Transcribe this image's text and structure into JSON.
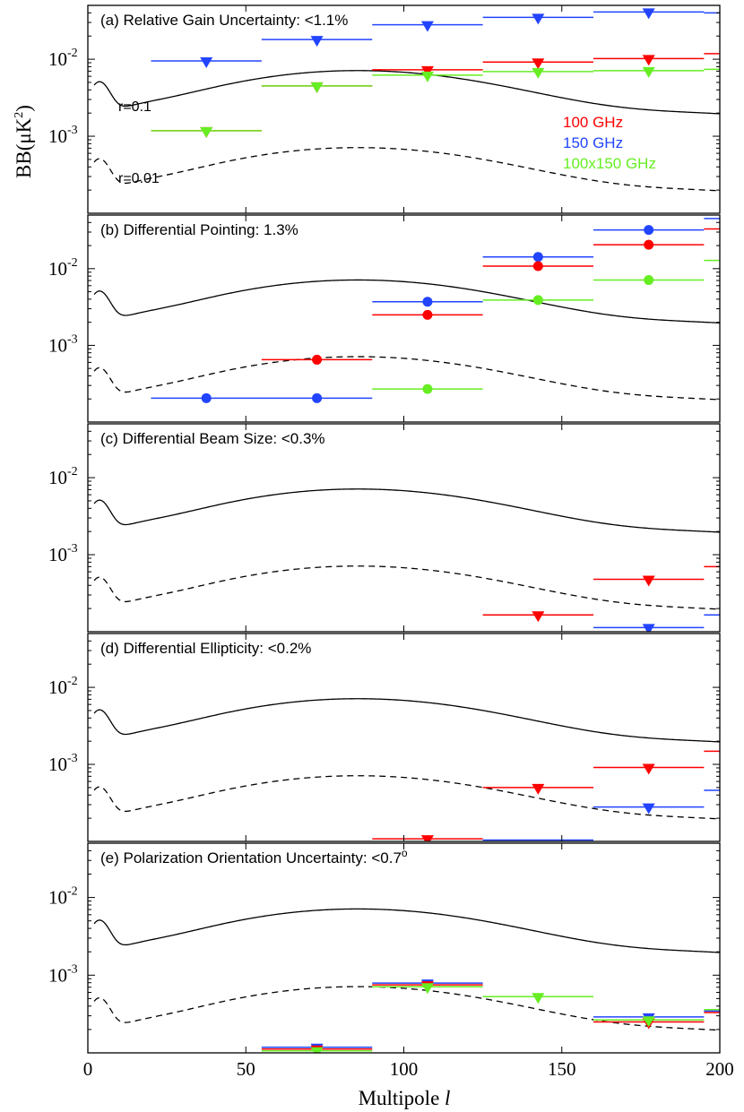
{
  "chart_data": {
    "type": "scatter",
    "xlabel": "Multipole l",
    "xlabel_prefix": "Multipole",
    "xlabel_symbol": "l",
    "ylabel": "BB(μK²)",
    "ylabel_base": "BB(μK",
    "ylabel_power": "2",
    "ylabel_close": ")",
    "xlim": [
      0,
      200
    ],
    "ylim": [
      0.0001,
      0.05
    ],
    "x_ticks": [
      "0",
      "50",
      "100",
      "150",
      "200"
    ],
    "y_ticks": [
      {
        "base": "10",
        "exp": "-3"
      },
      {
        "base": "10",
        "exp": "-2"
      }
    ],
    "colors": {
      "100": "#ff0000",
      "150": "#2244ff",
      "cross": "#66ee22",
      "curve": "#000000"
    },
    "legend": [
      "100 GHz",
      "150 GHz",
      "100x150 GHz"
    ],
    "reference_curves": [
      {
        "name": "r=0.1",
        "style": "solid"
      },
      {
        "name": "r=0.01",
        "style": "dashed"
      }
    ],
    "panels": [
      {
        "title": "(a) Relative Gain Uncertainty: <1.1%",
        "marker": "triangle",
        "show_r_labels": true,
        "show_legend": true,
        "series": [
          {
            "name": "150 GHz",
            "key": "150",
            "points": [
              {
                "lo": 20,
                "hi": 55,
                "x": 37.5,
                "y": 0.0095
              },
              {
                "lo": 55,
                "hi": 90,
                "x": 72.5,
                "y": 0.018
              },
              {
                "lo": 90,
                "hi": 125,
                "x": 107.5,
                "y": 0.028
              },
              {
                "lo": 125,
                "hi": 160,
                "x": 142.5,
                "y": 0.035
              },
              {
                "lo": 160,
                "hi": 195,
                "x": 177.5,
                "y": 0.041
              },
              {
                "lo": 195,
                "hi": 200,
                "x": null,
                "y": 0.04
              }
            ]
          },
          {
            "name": "100 GHz",
            "key": "100",
            "points": [
              {
                "lo": 20,
                "hi": 55,
                "x": 37.5,
                "y": 0.00118
              },
              {
                "lo": 55,
                "hi": 90,
                "x": 72.5,
                "y": 0.0045
              },
              {
                "lo": 90,
                "hi": 125,
                "x": 107.5,
                "y": 0.0073
              },
              {
                "lo": 125,
                "hi": 160,
                "x": 142.5,
                "y": 0.0092
              },
              {
                "lo": 160,
                "hi": 195,
                "x": 177.5,
                "y": 0.0102
              },
              {
                "lo": 195,
                "hi": 200,
                "x": null,
                "y": 0.0118
              }
            ]
          },
          {
            "name": "100x150 GHz",
            "key": "cross",
            "points": [
              {
                "lo": 20,
                "hi": 55,
                "x": 37.5,
                "y": 0.00118
              },
              {
                "lo": 55,
                "hi": 90,
                "x": 72.5,
                "y": 0.0045
              },
              {
                "lo": 90,
                "hi": 125,
                "x": 107.5,
                "y": 0.0062
              },
              {
                "lo": 125,
                "hi": 160,
                "x": 142.5,
                "y": 0.0069
              },
              {
                "lo": 160,
                "hi": 195,
                "x": 177.5,
                "y": 0.0071
              },
              {
                "lo": 195,
                "hi": 200,
                "x": null,
                "y": 0.0074
              }
            ]
          }
        ]
      },
      {
        "title": "(b) Differential Pointing: 1.3%",
        "marker": "circle",
        "show_r_labels": false,
        "show_legend": false,
        "series": [
          {
            "name": "150 GHz",
            "key": "150",
            "points": [
              {
                "lo": 20,
                "hi": 55,
                "x": 37.5,
                "y": 0.000205
              },
              {
                "lo": 55,
                "hi": 90,
                "x": 72.5,
                "y": 0.000205
              },
              {
                "lo": 90,
                "hi": 125,
                "x": 107.5,
                "y": 0.0037
              },
              {
                "lo": 125,
                "hi": 160,
                "x": 142.5,
                "y": 0.0142
              },
              {
                "lo": 160,
                "hi": 195,
                "x": 177.5,
                "y": 0.032
              },
              {
                "lo": 195,
                "hi": 200,
                "x": null,
                "y": 0.045
              }
            ]
          },
          {
            "name": "100 GHz",
            "key": "100",
            "points": [
              {
                "lo": 55,
                "hi": 90,
                "x": 72.5,
                "y": 0.00065
              },
              {
                "lo": 90,
                "hi": 125,
                "x": 107.5,
                "y": 0.0025
              },
              {
                "lo": 125,
                "hi": 160,
                "x": 142.5,
                "y": 0.0108
              },
              {
                "lo": 160,
                "hi": 195,
                "x": 177.5,
                "y": 0.0205
              },
              {
                "lo": 195,
                "hi": 200,
                "x": null,
                "y": 0.033
              }
            ]
          },
          {
            "name": "100x150 GHz",
            "key": "cross",
            "points": [
              {
                "lo": 90,
                "hi": 125,
                "x": 107.5,
                "y": 0.00027
              },
              {
                "lo": 125,
                "hi": 160,
                "x": 142.5,
                "y": 0.0039
              },
              {
                "lo": 160,
                "hi": 195,
                "x": 177.5,
                "y": 0.0071
              },
              {
                "lo": 195,
                "hi": 200,
                "x": null,
                "y": 0.0128
              }
            ]
          }
        ]
      },
      {
        "title": "(c) Differential Beam Size: <0.3%",
        "marker": "triangle",
        "show_r_labels": false,
        "show_legend": false,
        "series": [
          {
            "name": "100 GHz",
            "key": "100",
            "points": [
              {
                "lo": 125,
                "hi": 160,
                "x": 142.5,
                "y": 0.000165
              },
              {
                "lo": 160,
                "hi": 195,
                "x": 177.5,
                "y": 0.00048
              },
              {
                "lo": 195,
                "hi": 200,
                "x": null,
                "y": 0.0007
              }
            ]
          },
          {
            "name": "150 GHz",
            "key": "150",
            "points": [
              {
                "lo": 160,
                "hi": 195,
                "x": 177.5,
                "y": 0.000113
              },
              {
                "lo": 195,
                "hi": 200,
                "x": null,
                "y": 0.000165
              }
            ]
          }
        ]
      },
      {
        "title": "(d) Differential Ellipticity: <0.2%",
        "marker": "triangle",
        "show_r_labels": false,
        "show_legend": false,
        "series": [
          {
            "name": "100 GHz",
            "key": "100",
            "points": [
              {
                "lo": 90,
                "hi": 125,
                "x": 107.5,
                "y": 0.000108
              },
              {
                "lo": 125,
                "hi": 160,
                "x": 142.5,
                "y": 0.0005
              },
              {
                "lo": 160,
                "hi": 195,
                "x": 177.5,
                "y": 0.00091
              },
              {
                "lo": 195,
                "hi": 200,
                "x": null,
                "y": 0.00148
              }
            ]
          },
          {
            "name": "150 GHz",
            "key": "150",
            "points": [
              {
                "lo": 125,
                "hi": 160,
                "x": null,
                "y": 0.000104
              },
              {
                "lo": 160,
                "hi": 195,
                "x": 177.5,
                "y": 0.00028
              },
              {
                "lo": 195,
                "hi": 200,
                "x": null,
                "y": 0.00046
              }
            ]
          }
        ]
      },
      {
        "title": "(e) Polarization Orientation Uncertainty: <0.7°",
        "title_text": "(e) Polarization Orientation Uncertainty: <0.7",
        "title_sup": "o",
        "marker": "triangle",
        "show_r_labels": false,
        "show_legend": false,
        "series": [
          {
            "name": "150 GHz",
            "key": "150",
            "points": [
              {
                "lo": 55,
                "hi": 90,
                "x": 72.5,
                "y": 0.000118
              },
              {
                "lo": 90,
                "hi": 125,
                "x": 107.5,
                "y": 0.00079
              },
              {
                "lo": 160,
                "hi": 195,
                "x": 177.5,
                "y": 0.00029
              },
              {
                "lo": 195,
                "hi": 200,
                "x": null,
                "y": 0.000345
              }
            ]
          },
          {
            "name": "100 GHz",
            "key": "100",
            "points": [
              {
                "lo": 55,
                "hi": 90,
                "x": 72.5,
                "y": 0.000112
              },
              {
                "lo": 90,
                "hi": 125,
                "x": 107.5,
                "y": 0.00075
              },
              {
                "lo": 160,
                "hi": 195,
                "x": 177.5,
                "y": 0.00025
              },
              {
                "lo": 195,
                "hi": 200,
                "x": null,
                "y": 0.00033
              }
            ]
          },
          {
            "name": "100x150 GHz",
            "key": "cross",
            "points": [
              {
                "lo": 55,
                "hi": 90,
                "x": 72.5,
                "y": 0.000106
              },
              {
                "lo": 90,
                "hi": 125,
                "x": 107.5,
                "y": 0.00071
              },
              {
                "lo": 125,
                "hi": 160,
                "x": 142.5,
                "y": 0.00053
              },
              {
                "lo": 160,
                "hi": 195,
                "x": 177.5,
                "y": 0.000265
              },
              {
                "lo": 195,
                "hi": 200,
                "x": null,
                "y": 0.00036
              }
            ]
          }
        ]
      }
    ]
  }
}
